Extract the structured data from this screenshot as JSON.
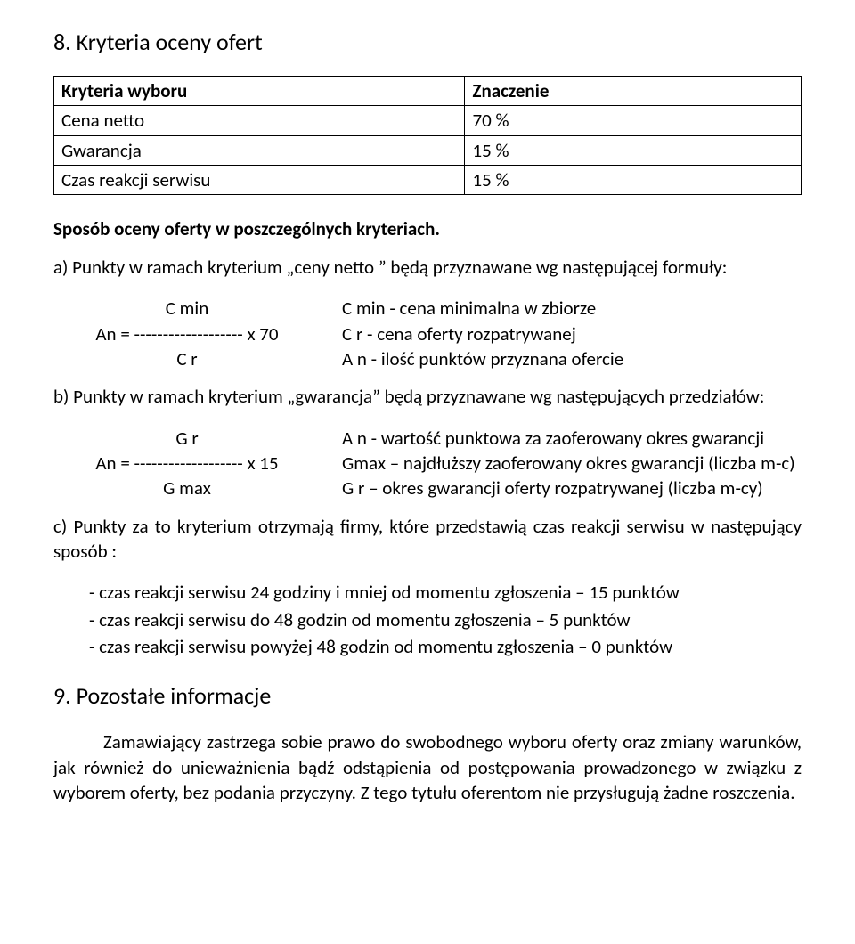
{
  "section8": {
    "title": "8. Kryteria oceny ofert",
    "table": {
      "header": {
        "col1": "Kryteria wyboru",
        "col2": "Znaczenie"
      },
      "rows": [
        {
          "c1": "Cena netto",
          "c2": "70 %"
        },
        {
          "c1": "Gwarancja",
          "c2": "15 %"
        },
        {
          "c1": "Czas reakcji serwisu",
          "c2": "15 %"
        }
      ]
    },
    "sub_heading": "Sposób oceny oferty w poszczególnych kryteriach.",
    "a_intro": "a) Punkty w ramach kryterium „ceny netto ” będą przyznawane wg następującej formuły:",
    "a_formula": {
      "left": {
        "top": "C min",
        "mid": "An = -------------------  x 70",
        "bot": "C r"
      },
      "right": {
        "l1": "C min    - cena minimalna w zbiorze",
        "l2": "C r        - cena oferty rozpatrywanej",
        "l3": "A n       - ilość punktów przyznana ofercie"
      }
    },
    "b_intro": "b) Punkty w ramach kryterium „gwarancja” będą przyznawane wg następujących przedziałów:",
    "b_formula": {
      "left": {
        "top": "G r",
        "mid": "An = -------------------  x 15",
        "bot": "G max"
      },
      "right": {
        "l1": "A n  - wartość punktowa za zaoferowany okres gwarancji",
        "l2": "Gmax – najdłuższy zaoferowany okres gwarancji (liczba m-c)",
        "l3": "G r – okres gwarancji oferty rozpatrywanej (liczba m-cy)"
      }
    },
    "c_intro": "c) Punkty za to kryterium otrzymają firmy, które przedstawią czas reakcji serwisu  w następujący sposób :",
    "c_bullets": [
      "- czas reakcji serwisu 24 godziny i mniej od momentu zgłoszenia – 15 punktów",
      "- czas reakcji serwisu do 48 godzin od momentu zgłoszenia – 5 punktów",
      "- czas reakcji serwisu powyżej 48 godzin od momentu zgłoszenia – 0 punktów"
    ]
  },
  "section9": {
    "title": "9. Pozostałe informacje",
    "body": "Zamawiający zastrzega sobie prawo do swobodnego wyboru oferty oraz zmiany warunków, jak również do unieważnienia bądź odstąpienia od postępowania prowadzonego w związku z wyborem oferty, bez podania przyczyny. Z tego tytułu oferentom nie przysługują żadne roszczenia."
  }
}
